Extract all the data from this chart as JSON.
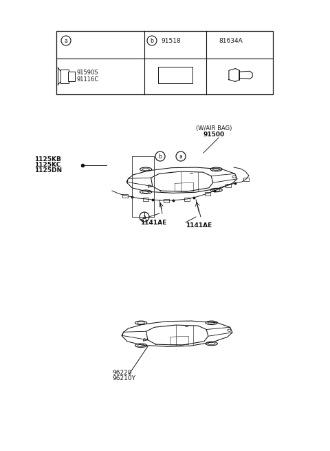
{
  "bg_color": "#ffffff",
  "fig_width": 4.8,
  "fig_height": 6.55,
  "dpi": 100,
  "labels": {
    "top_car_label1": "96210Y",
    "top_car_label2": "96220",
    "mid_label1a": "1141AE",
    "mid_label1b": "1141AE",
    "left_label1": "1125DN",
    "left_label2": "1125KC",
    "left_label3": "1125KB",
    "bottom_label1": "91500",
    "bottom_label2": "(W/AIR BAG)",
    "table_a": "a",
    "table_b": "b",
    "table_c1": "91518",
    "table_c2": "81634A",
    "table_d1": "91590S",
    "table_d2": "91116C"
  }
}
